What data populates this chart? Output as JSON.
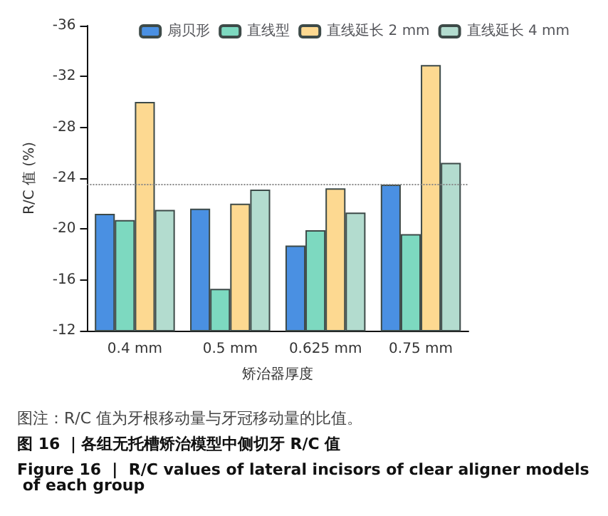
{
  "chart_data": {
    "type": "bar",
    "xlabel": "矫治器厚度",
    "ylabel": "R/C 值 (%)",
    "categories": [
      "0.4 mm",
      "0.5 mm",
      "0.625 mm",
      "0.75 mm"
    ],
    "series": [
      {
        "name": "扇贝形",
        "color": "#4a90e2",
        "values": [
          -21.2,
          -21.6,
          -18.7,
          -23.5
        ]
      },
      {
        "name": "直线型",
        "color": "#7dd9c0",
        "values": [
          -20.7,
          -15.3,
          -19.9,
          -19.6
        ]
      },
      {
        "name": "直线延长 2 mm",
        "color": "#fdd991",
        "values": [
          -30.0,
          -22.0,
          -23.2,
          -32.9
        ]
      },
      {
        "name": "直线延长 4 mm",
        "color": "#b3dccf",
        "values": [
          -21.5,
          -23.1,
          -21.3,
          -25.2
        ]
      }
    ],
    "ylim": [
      -12,
      -36
    ],
    "yticks": [
      -36,
      -32,
      -28,
      -24,
      -20,
      -16,
      -12
    ],
    "ref_lines": [
      {
        "axis": "y",
        "value": -23.5,
        "color": "#888888",
        "line_style": "dotted"
      }
    ],
    "legend": "top right",
    "grid": false,
    "annotations": [
      "图注：R/C 值为牙根移动量与牙冠移动量的比值。",
      "图 16 ｜各组无托槽矫治模型中侧切牙 R/C 值",
      "Figure 16  |  R/C values of lateral incisors of clear aligner models of each group"
    ]
  }
}
